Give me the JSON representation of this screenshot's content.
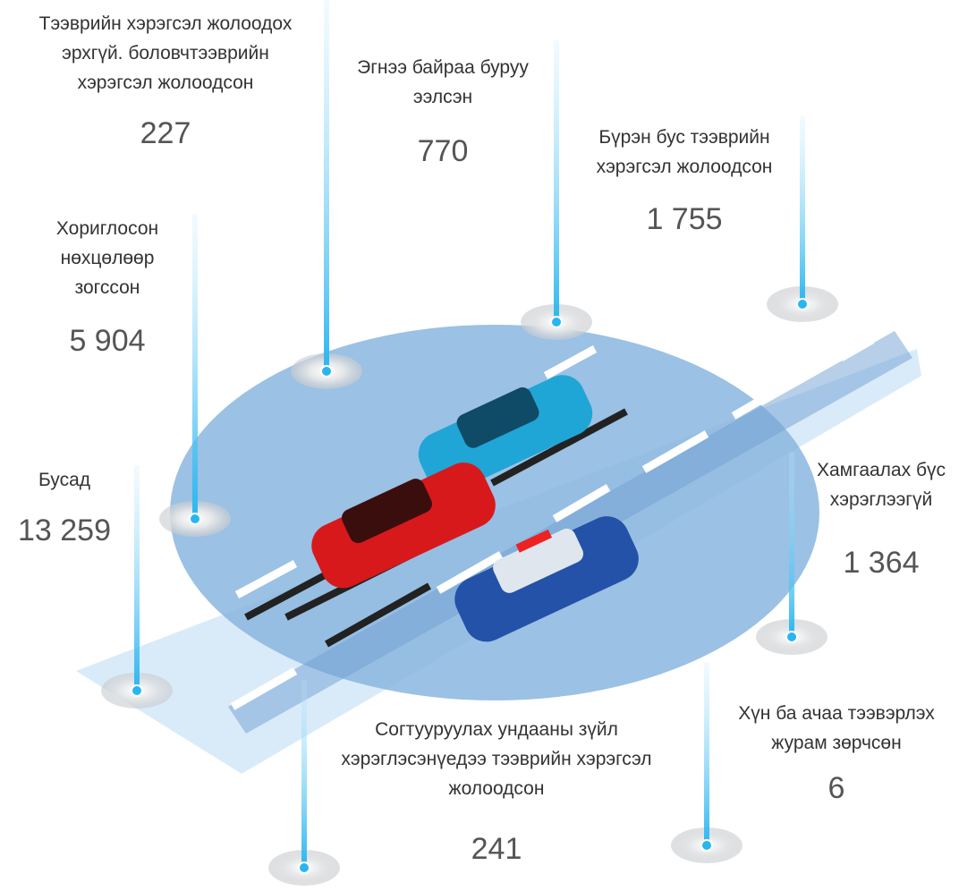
{
  "items": [
    {
      "label": [
        "Тээврийн хэрэгсэл жолоодох",
        "эрхгүй. боловчтээврийн",
        "хэрэгсэл жолоодсон"
      ],
      "value": "227"
    },
    {
      "label": [
        "Эгнээ байраа буруу",
        "ээлсэн"
      ],
      "value": "770"
    },
    {
      "label": [
        "Бүрэн бус тээврийн",
        "хэрэгсэл жолоодсон"
      ],
      "value": "1 755"
    },
    {
      "label": [
        "Хориглосон",
        "нөхцөлөөр",
        "зогссон"
      ],
      "value": "5 904"
    },
    {
      "label": [
        "Бусад"
      ],
      "value": "13 259"
    },
    {
      "label": [
        "Хамгаалах бүс",
        "хэрэглээгүй"
      ],
      "value": "1 364"
    },
    {
      "label": [
        "Согтууруулах ундааны зүйл",
        "хэрэглэсэнүедээ тээврийн хэрэгсэл",
        "жолоодсон"
      ],
      "value": "241"
    },
    {
      "label": [
        "Хүн ба ачаа тээвэрлэх",
        "журам зөрчсөн"
      ],
      "value": "6"
    }
  ]
}
